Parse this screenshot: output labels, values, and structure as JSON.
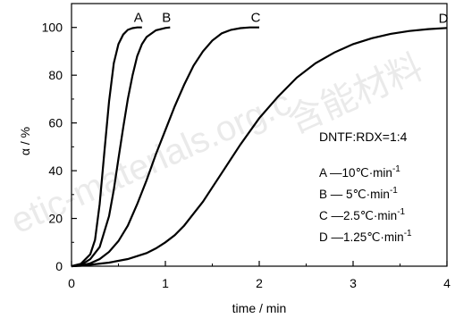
{
  "watermark": {
    "text_latin": "etic-materials.org.c",
    "text_cjk": "含能材料"
  },
  "chart_data": {
    "type": "line",
    "xlabel": "time / min",
    "ylabel": "α / %",
    "xlim": [
      0,
      4
    ],
    "ylim": [
      0,
      110
    ],
    "x_ticks": [
      0,
      1,
      2,
      3,
      4
    ],
    "y_ticks": [
      0,
      20,
      40,
      60,
      80,
      100
    ],
    "grid": false,
    "legend": {
      "placement": "right",
      "title": "DNTF:RDX=1:4",
      "entries": [
        {
          "prefix": "A —10℃·min",
          "sup": "-1"
        },
        {
          "prefix": "B — 5℃·min",
          "sup": "-1"
        },
        {
          "prefix": "C —2.5℃·min",
          "sup": "-1"
        },
        {
          "prefix": "D —1.25℃·min",
          "sup": "-1"
        }
      ]
    },
    "series": [
      {
        "name": "A",
        "x": [
          0.0,
          0.1,
          0.2,
          0.25,
          0.3,
          0.35,
          0.4,
          0.45,
          0.5,
          0.55,
          0.6,
          0.65,
          0.7,
          0.75
        ],
        "y": [
          0,
          1,
          5,
          11,
          26,
          48,
          69,
          85,
          93,
          97,
          99,
          99.7,
          100,
          100
        ]
      },
      {
        "name": "B",
        "x": [
          0.0,
          0.1,
          0.2,
          0.3,
          0.4,
          0.45,
          0.5,
          0.55,
          0.6,
          0.65,
          0.7,
          0.75,
          0.8,
          0.9,
          1.0,
          1.05
        ],
        "y": [
          0,
          0.5,
          3,
          8,
          21,
          32,
          45,
          58,
          70,
          80,
          88,
          93,
          96,
          98.8,
          99.8,
          100
        ]
      },
      {
        "name": "C",
        "x": [
          0.0,
          0.1,
          0.2,
          0.3,
          0.4,
          0.5,
          0.6,
          0.7,
          0.8,
          0.9,
          1.0,
          1.1,
          1.2,
          1.3,
          1.4,
          1.5,
          1.6,
          1.7,
          1.8,
          1.9,
          2.0
        ],
        "y": [
          0,
          0.3,
          1.2,
          3,
          6,
          10.5,
          17,
          26,
          36,
          47,
          57,
          67,
          76,
          84,
          90,
          94.5,
          97.5,
          99,
          99.7,
          100,
          100
        ]
      },
      {
        "name": "D",
        "x": [
          0.0,
          0.1,
          0.2,
          0.4,
          0.6,
          0.8,
          0.9,
          1.0,
          1.1,
          1.2,
          1.3,
          1.4,
          1.5,
          1.6,
          1.8,
          2.0,
          2.2,
          2.4,
          2.6,
          2.8,
          3.0,
          3.2,
          3.4,
          3.6,
          3.8,
          4.0
        ],
        "y": [
          0,
          0.2,
          0.6,
          1.5,
          3,
          5.5,
          7.5,
          10,
          13,
          17,
          22,
          27,
          33,
          39,
          51,
          62,
          71,
          79,
          85,
          89.5,
          93,
          95.5,
          97.3,
          98.5,
          99.3,
          99.8
        ]
      }
    ]
  }
}
